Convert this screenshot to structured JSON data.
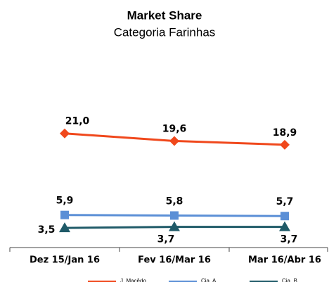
{
  "chart_data": {
    "type": "line",
    "title": "Market Share",
    "subtitle": "Categoria Farinhas",
    "categories": [
      "Dez 15/Jan 16",
      "Fev 16/Mar 16",
      "Mar 16/Abr 16"
    ],
    "series": [
      {
        "name": "J. Macêdo",
        "color": "#f0481c",
        "marker": "diamond",
        "values": [
          21.0,
          19.6,
          18.9
        ],
        "value_labels": [
          "21,0",
          "19,6",
          "18,9"
        ]
      },
      {
        "name": "Cia. A",
        "color": "#5b8fd6",
        "marker": "square",
        "values": [
          5.9,
          5.8,
          5.7
        ],
        "value_labels": [
          "5,9",
          "5,8",
          "5,7"
        ]
      },
      {
        "name": "Cia. B",
        "color": "#1f5a68",
        "marker": "triangle",
        "values": [
          3.5,
          3.7,
          3.7
        ],
        "value_labels": [
          "3,5",
          "3,7",
          "3,7"
        ]
      }
    ]
  }
}
